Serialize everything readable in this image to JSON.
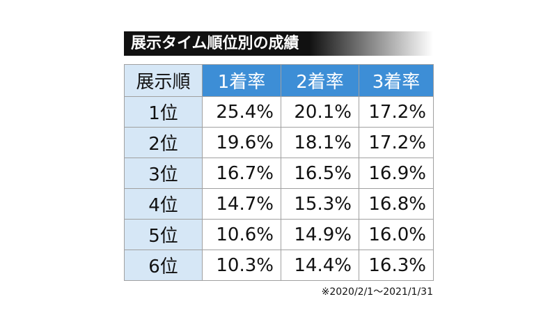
{
  "title": "展示タイム順位別の成績",
  "table": {
    "header": [
      "展示順",
      "1着率",
      "2着率",
      "3着率"
    ],
    "rows": [
      [
        "1位",
        "25.4%",
        "20.1%",
        "17.2%"
      ],
      [
        "2位",
        "19.6%",
        "18.1%",
        "17.2%"
      ],
      [
        "3位",
        "16.7%",
        "16.5%",
        "16.9%"
      ],
      [
        "4位",
        "14.7%",
        "15.3%",
        "16.8%"
      ],
      [
        "5位",
        "10.6%",
        "14.9%",
        "16.0%"
      ],
      [
        "6位",
        "10.3%",
        "14.4%",
        "16.3%"
      ]
    ]
  },
  "note": "※2020/2/1～2021/1/31"
}
